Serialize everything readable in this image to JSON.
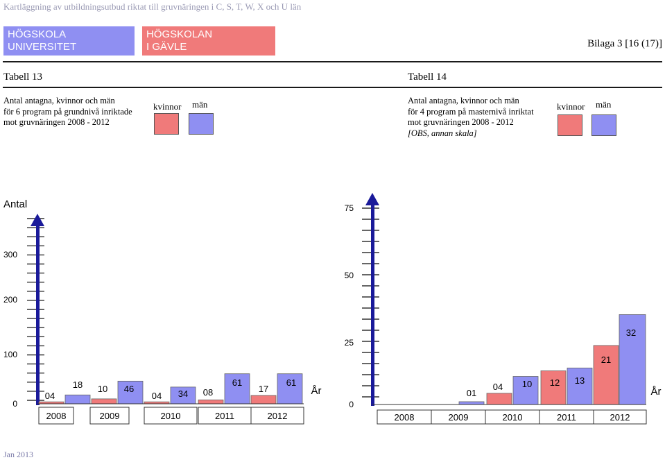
{
  "header": {
    "doc_title": "Kartläggning av utbildningsutbud riktat till gruvnäringen i C, S, T, W, X och U län",
    "logo_hu_line1": "HÖGSKOLA",
    "logo_hu_line2": "UNIVERSITET",
    "logo_hig_line1": "HÖGSKOLAN",
    "logo_hig_line2": "I GÄVLE",
    "bilaga": "Bilaga 3 [16 (17)]"
  },
  "colors": {
    "kvinnor": "#f07a7a",
    "man": "#8f8ff2",
    "axis": "#1a1a9a"
  },
  "left": {
    "table_label": "Tabell 13",
    "desc_lines": [
      "Antal antagna, kvinnor och män",
      "för 6 program på grundnivå inriktade",
      "mot gruvnäringen 2008 - 2012"
    ],
    "legend": {
      "kvinnor": "kvinnor",
      "man": "män"
    }
  },
  "right": {
    "table_label": "Tabell 14",
    "desc_lines": [
      "Antal antagna, kvinnor och män",
      "för 4 program på masternivå inriktat",
      "mot gruvnäringen 2008 - 2012"
    ],
    "desc_note": "[OBS, annan skala]",
    "legend": {
      "kvinnor": "kvinnor",
      "man": "män"
    }
  },
  "footer": {
    "text": "Jan 2013"
  },
  "chart_data": [
    {
      "type": "bar",
      "title": "Tabell 13",
      "ylabel": "Antal",
      "xlabel": "År",
      "categories": [
        "2008",
        "2009",
        "2010",
        "2011",
        "2012"
      ],
      "series": [
        {
          "name": "kvinnor",
          "values": [
            4,
            10,
            4,
            8,
            17
          ]
        },
        {
          "name": "män",
          "values": [
            18,
            46,
            34,
            61,
            61
          ]
        }
      ],
      "data_labels": {
        "kvinnor": [
          "04",
          "10",
          "04",
          "08",
          "17"
        ],
        "män": [
          "18",
          "46",
          "34",
          "61",
          "61"
        ]
      },
      "yticks": [
        "0",
        "100",
        "200",
        "300"
      ],
      "ylim": [
        0,
        400
      ]
    },
    {
      "type": "bar",
      "title": "Tabell 14",
      "xlabel": "År",
      "categories": [
        "2008",
        "2009",
        "2010",
        "2011",
        "2012"
      ],
      "series": [
        {
          "name": "kvinnor",
          "values": [
            null,
            4,
            12,
            21,
            null
          ]
        },
        {
          "name": "män",
          "values": [
            1,
            10,
            13,
            32,
            null
          ]
        }
      ],
      "data_labels": {
        "kvinnor": [
          "",
          "04",
          "12",
          "21",
          ""
        ],
        "män": [
          "01",
          "10",
          "13",
          "32",
          ""
        ]
      },
      "yticks": [
        "0",
        "25",
        "50",
        "75"
      ],
      "ylim": [
        0,
        75
      ]
    }
  ]
}
